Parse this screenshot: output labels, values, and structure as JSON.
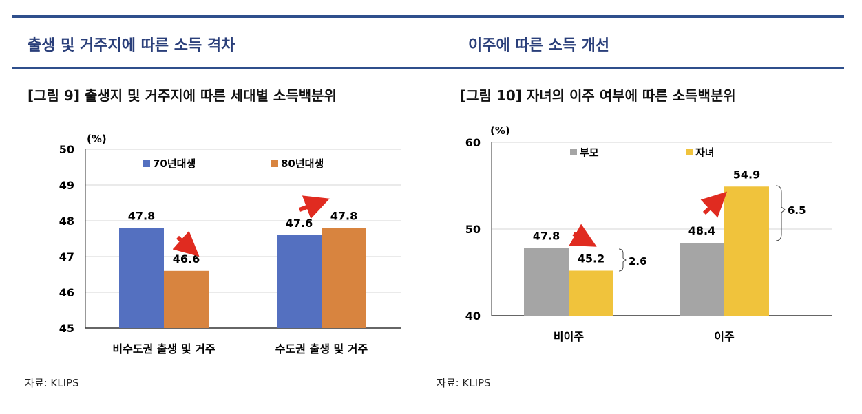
{
  "sections": {
    "left_title": "출생 및 거주지에 따른 소득 격차",
    "right_title": "이주에 따른 소득 개선"
  },
  "figures": {
    "left_caption": "[그림 9] 출생지 및 거주지에 따른 세대별 소득백분위",
    "right_caption": "[그림 10] 자녀의 이주 여부에 따른 소득백분위"
  },
  "sources": {
    "left": "자료: KLIPS",
    "right": "자료: KLIPS"
  },
  "chart_data": [
    {
      "type": "bar",
      "unit_label": "(%)",
      "categories": [
        "비수도권 출생 및 거주",
        "수도권 출생 및 거주"
      ],
      "series": [
        {
          "name": "70년대생",
          "color": "#5470c0",
          "values": [
            47.8,
            47.6
          ]
        },
        {
          "name": "80년대생",
          "color": "#d8843f",
          "values": [
            46.6,
            47.8
          ]
        }
      ],
      "data_labels": [
        [
          "47.8",
          "47.6"
        ],
        [
          "46.6",
          "47.8"
        ]
      ],
      "ylim": [
        45,
        50
      ],
      "yticks": [
        "45",
        "46",
        "47",
        "48",
        "49",
        "50"
      ],
      "grid": true,
      "legend": "top"
    },
    {
      "type": "bar",
      "unit_label": "(%)",
      "categories": [
        "비이주",
        "이주"
      ],
      "series": [
        {
          "name": "부모",
          "color": "#a5a5a5",
          "values": [
            47.8,
            48.4
          ]
        },
        {
          "name": "자녀",
          "color": "#f0c33c",
          "values": [
            45.2,
            54.9
          ]
        }
      ],
      "data_labels": [
        [
          "47.8",
          "48.4"
        ],
        [
          "45.2",
          "54.9"
        ]
      ],
      "ylim": [
        40,
        60
      ],
      "yticks": [
        "40",
        "50",
        "60"
      ],
      "grid": true,
      "legend": "top",
      "annotations": [
        "2.6",
        "6.5"
      ]
    }
  ]
}
